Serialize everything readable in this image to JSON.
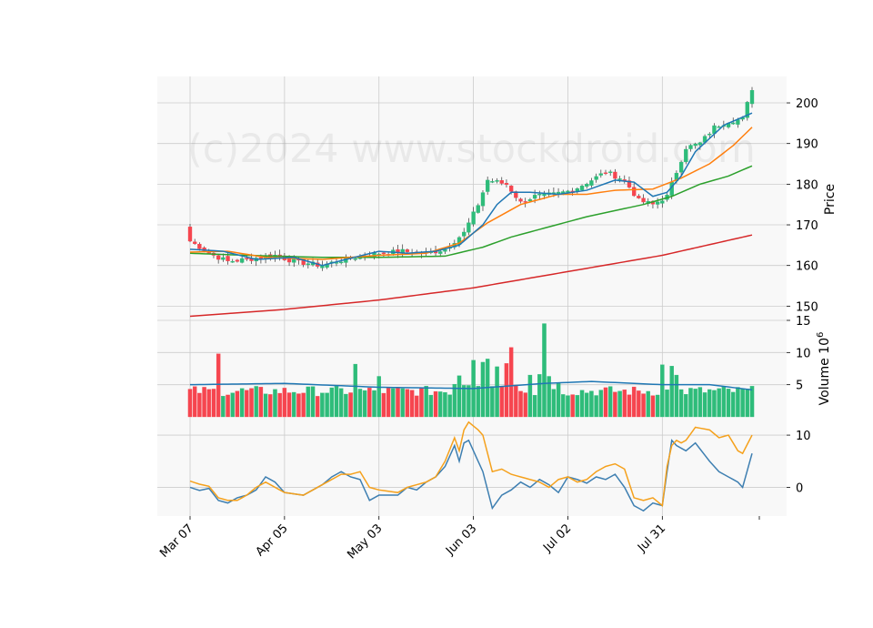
{
  "chart_data": {
    "type": "candlestick",
    "watermark": "(c)2024 www.stockdroid.com",
    "colors": {
      "up": "#2ebc7a",
      "down": "#f6454f",
      "ma_fast": "#1f77b4",
      "ma_mid": "#ff7f0e",
      "ma_slow": "#2ca02c",
      "ma_long": "#d62728",
      "osc_a": "#3e7fb1",
      "osc_b": "#f5a11c",
      "panel_bg": "#f8f8f8",
      "grid": "#cccccc"
    },
    "x_tick_labels": [
      "Mar 07",
      "Apr 05",
      "May 03",
      "Jun 03",
      "Jul 02",
      "Jul 31"
    ],
    "x_tick_index": [
      0,
      20,
      40,
      60,
      80,
      100
    ],
    "n_sessions": 120,
    "price_panel": {
      "ylabel": "Price",
      "ylim": [
        146.5,
        206.5
      ],
      "yticks": [
        150,
        160,
        170,
        180,
        190,
        200
      ],
      "key_points": [
        [
          0,
          166
        ],
        [
          5,
          162.5
        ],
        [
          8,
          161
        ],
        [
          12,
          161.5
        ],
        [
          18,
          162.5
        ],
        [
          22,
          161
        ],
        [
          28,
          160
        ],
        [
          31,
          161
        ],
        [
          35,
          162
        ],
        [
          40,
          163
        ],
        [
          45,
          163.5
        ],
        [
          50,
          163
        ],
        [
          54,
          164
        ],
        [
          58,
          168
        ],
        [
          61,
          175
        ],
        [
          63,
          181
        ],
        [
          65,
          180.5
        ],
        [
          67,
          180
        ],
        [
          70,
          175.5
        ],
        [
          73,
          177
        ],
        [
          77,
          177.5
        ],
        [
          81,
          178.5
        ],
        [
          85,
          181
        ],
        [
          88,
          183
        ],
        [
          92,
          181
        ],
        [
          95,
          176
        ],
        [
          98,
          175
        ],
        [
          101,
          177
        ],
        [
          103,
          183
        ],
        [
          105,
          189
        ],
        [
          108,
          190
        ],
        [
          111,
          194
        ],
        [
          114,
          195.5
        ],
        [
          117,
          196
        ],
        [
          119,
          203.5
        ]
      ],
      "ma_fast": [
        [
          0,
          164
        ],
        [
          7,
          163.5
        ],
        [
          14,
          161.5
        ],
        [
          22,
          162
        ],
        [
          28,
          160
        ],
        [
          33,
          161.5
        ],
        [
          40,
          163.5
        ],
        [
          46,
          163
        ],
        [
          52,
          163.5
        ],
        [
          57,
          165
        ],
        [
          62,
          170
        ],
        [
          65,
          175
        ],
        [
          68,
          178
        ],
        [
          72,
          178
        ],
        [
          78,
          177.5
        ],
        [
          84,
          178.5
        ],
        [
          90,
          181
        ],
        [
          94,
          180.5
        ],
        [
          98,
          177
        ],
        [
          101,
          178
        ],
        [
          104,
          182
        ],
        [
          107,
          188
        ],
        [
          113,
          194.5
        ],
        [
          119,
          197.5
        ]
      ],
      "ma_mid": [
        [
          0,
          163.3
        ],
        [
          8,
          163.5
        ],
        [
          16,
          162
        ],
        [
          28,
          161.5
        ],
        [
          40,
          162.5
        ],
        [
          50,
          163
        ],
        [
          57,
          165.5
        ],
        [
          63,
          170.5
        ],
        [
          70,
          175
        ],
        [
          78,
          177.5
        ],
        [
          84,
          177.5
        ],
        [
          90,
          178.5
        ],
        [
          98,
          178.8
        ],
        [
          104,
          181.5
        ],
        [
          110,
          185
        ],
        [
          115,
          189.5
        ],
        [
          119,
          194
        ]
      ],
      "ma_slow": [
        [
          0,
          163
        ],
        [
          12,
          162.5
        ],
        [
          28,
          162
        ],
        [
          40,
          162
        ],
        [
          54,
          162.3
        ],
        [
          62,
          164.5
        ],
        [
          68,
          167
        ],
        [
          76,
          169.5
        ],
        [
          84,
          172
        ],
        [
          90,
          173.5
        ],
        [
          96,
          175
        ],
        [
          102,
          177
        ],
        [
          108,
          180
        ],
        [
          114,
          182
        ],
        [
          119,
          184.5
        ]
      ],
      "ma_long": [
        [
          0,
          147.5
        ],
        [
          20,
          149.2
        ],
        [
          40,
          151.5
        ],
        [
          60,
          154.5
        ],
        [
          80,
          158.5
        ],
        [
          100,
          162.5
        ],
        [
          119,
          167.5
        ]
      ]
    },
    "volume_panel": {
      "ylabel": "Volume  10^6",
      "ylim": [
        0,
        15
      ],
      "yticks": [
        5,
        10,
        15
      ],
      "spikes": [
        [
          6,
          9.8
        ],
        [
          35,
          8.2
        ],
        [
          40,
          6.3
        ],
        [
          57,
          6.4
        ],
        [
          60,
          8.8
        ],
        [
          62,
          8.5
        ],
        [
          63,
          9.0
        ],
        [
          65,
          7.8
        ],
        [
          67,
          8.3
        ],
        [
          68,
          10.8
        ],
        [
          72,
          6.5
        ],
        [
          74,
          6.6
        ],
        [
          75,
          14.5
        ],
        [
          76,
          6.3
        ],
        [
          78,
          5.2
        ],
        [
          100,
          8.1
        ],
        [
          102,
          7.9
        ],
        [
          103,
          6.5
        ]
      ],
      "avg_line": [
        [
          0,
          5.0
        ],
        [
          20,
          5.2
        ],
        [
          40,
          4.6
        ],
        [
          60,
          4.4
        ],
        [
          75,
          5.2
        ],
        [
          85,
          5.5
        ],
        [
          100,
          5.0
        ],
        [
          110,
          5.0
        ],
        [
          119,
          4.2
        ]
      ]
    },
    "osc_panel": {
      "ylim": [
        -5.5,
        13.5
      ],
      "yticks": [
        0,
        10
      ],
      "line_a": [
        [
          0,
          0
        ],
        [
          2,
          -0.6
        ],
        [
          4,
          -0.2
        ],
        [
          6,
          -2.5
        ],
        [
          8,
          -3
        ],
        [
          10,
          -2
        ],
        [
          12,
          -1.5
        ],
        [
          14,
          -0.5
        ],
        [
          16,
          2
        ],
        [
          18,
          1
        ],
        [
          20,
          -1
        ],
        [
          24,
          -1.5
        ],
        [
          28,
          0.5
        ],
        [
          30,
          2
        ],
        [
          32,
          3
        ],
        [
          34,
          2
        ],
        [
          36,
          1.5
        ],
        [
          38,
          -2.5
        ],
        [
          40,
          -1.5
        ],
        [
          44,
          -1.5
        ],
        [
          46,
          0
        ],
        [
          48,
          -0.5
        ],
        [
          50,
          1
        ],
        [
          52,
          2
        ],
        [
          54,
          4
        ],
        [
          56,
          8
        ],
        [
          57,
          5
        ],
        [
          58,
          8.5
        ],
        [
          59,
          9
        ],
        [
          61,
          5
        ],
        [
          62,
          3
        ],
        [
          64,
          -4
        ],
        [
          66,
          -1.5
        ],
        [
          68,
          -0.5
        ],
        [
          70,
          1
        ],
        [
          72,
          0
        ],
        [
          74,
          1.5
        ],
        [
          76,
          0.5
        ],
        [
          78,
          -1
        ],
        [
          80,
          2
        ],
        [
          82,
          1.5
        ],
        [
          84,
          0.8
        ],
        [
          86,
          2
        ],
        [
          88,
          1.5
        ],
        [
          90,
          2.5
        ],
        [
          92,
          0
        ],
        [
          94,
          -3.5
        ],
        [
          96,
          -4.5
        ],
        [
          98,
          -3
        ],
        [
          100,
          -3.5
        ],
        [
          101,
          3
        ],
        [
          102,
          9
        ],
        [
          103,
          8
        ],
        [
          104,
          7.5
        ],
        [
          105,
          7
        ],
        [
          107,
          8.5
        ],
        [
          110,
          5
        ],
        [
          112,
          3
        ],
        [
          114,
          2
        ],
        [
          116,
          1
        ],
        [
          117,
          0
        ],
        [
          119,
          6.5
        ]
      ],
      "line_b": [
        [
          0,
          1.2
        ],
        [
          2,
          0.6
        ],
        [
          4,
          0.2
        ],
        [
          6,
          -2
        ],
        [
          8,
          -2.5
        ],
        [
          10,
          -2.5
        ],
        [
          12,
          -1.5
        ],
        [
          14,
          0
        ],
        [
          16,
          1
        ],
        [
          18,
          0
        ],
        [
          20,
          -1
        ],
        [
          24,
          -1.5
        ],
        [
          28,
          0.5
        ],
        [
          30,
          1.5
        ],
        [
          32,
          2.5
        ],
        [
          34,
          2.5
        ],
        [
          36,
          3
        ],
        [
          38,
          0
        ],
        [
          40,
          -0.5
        ],
        [
          44,
          -1
        ],
        [
          46,
          0
        ],
        [
          48,
          0.5
        ],
        [
          50,
          1
        ],
        [
          52,
          2
        ],
        [
          54,
          5
        ],
        [
          56,
          9.5
        ],
        [
          57,
          7
        ],
        [
          58,
          11
        ],
        [
          59,
          12.5
        ],
        [
          61,
          11
        ],
        [
          62,
          10
        ],
        [
          64,
          3
        ],
        [
          66,
          3.5
        ],
        [
          68,
          2.5
        ],
        [
          70,
          2
        ],
        [
          72,
          1.5
        ],
        [
          74,
          1
        ],
        [
          76,
          0
        ],
        [
          78,
          1.5
        ],
        [
          80,
          2
        ],
        [
          82,
          1
        ],
        [
          84,
          1.5
        ],
        [
          86,
          3
        ],
        [
          88,
          4
        ],
        [
          90,
          4.5
        ],
        [
          92,
          3.5
        ],
        [
          94,
          -2
        ],
        [
          96,
          -2.5
        ],
        [
          98,
          -2
        ],
        [
          100,
          -3.5
        ],
        [
          101,
          4
        ],
        [
          102,
          8
        ],
        [
          103,
          9
        ],
        [
          104,
          8.5
        ],
        [
          105,
          9
        ],
        [
          107,
          11.5
        ],
        [
          110,
          11
        ],
        [
          112,
          9.5
        ],
        [
          114,
          10
        ],
        [
          116,
          7
        ],
        [
          117,
          6.5
        ],
        [
          119,
          10
        ]
      ]
    }
  }
}
